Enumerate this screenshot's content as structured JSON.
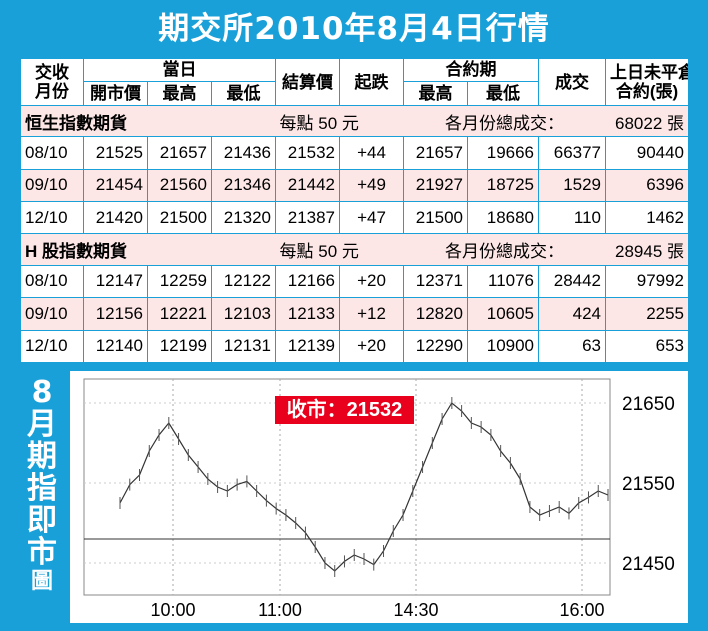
{
  "title": "期交所2010年8月4日行情",
  "table": {
    "headers": {
      "month_line1": "交收",
      "month_line2": "月份",
      "day_group": "當日",
      "open": "開市價",
      "high": "最高",
      "low": "最低",
      "settle": "結算價",
      "change": "起跌",
      "contract_group": "合約期",
      "c_high": "最高",
      "c_low": "最低",
      "volume": "成交",
      "oi_line1": "上日未平倉",
      "oi_line2": "合約(張)"
    },
    "sections": [
      {
        "name": "恒生指數期貨",
        "per_point": "每點 50 元",
        "total_label": "各月份總成交：",
        "total": "68022 張",
        "rows": [
          {
            "month": "08/10",
            "open": "21525",
            "high": "21657",
            "low": "21436",
            "settle": "21532",
            "change": "+44",
            "c_high": "21657",
            "c_low": "19666",
            "volume": "66377",
            "oi": "90440"
          },
          {
            "month": "09/10",
            "open": "21454",
            "high": "21560",
            "low": "21346",
            "settle": "21442",
            "change": "+49",
            "c_high": "21927",
            "c_low": "18725",
            "volume": "1529",
            "oi": "6396"
          },
          {
            "month": "12/10",
            "open": "21420",
            "high": "21500",
            "low": "21320",
            "settle": "21387",
            "change": "+47",
            "c_high": "21500",
            "c_low": "18680",
            "volume": "110",
            "oi": "1462"
          }
        ]
      },
      {
        "name": "H 股指數期貨",
        "per_point": "每點 50 元",
        "total_label": "各月份總成交：",
        "total": "28945 張",
        "rows": [
          {
            "month": "08/10",
            "open": "12147",
            "high": "12259",
            "low": "12122",
            "settle": "12166",
            "change": "+20",
            "c_high": "12371",
            "c_low": "11076",
            "volume": "28442",
            "oi": "97992"
          },
          {
            "month": "09/10",
            "open": "12156",
            "high": "12221",
            "low": "12103",
            "settle": "12133",
            "change": "+12",
            "c_high": "12820",
            "c_low": "10605",
            "volume": "424",
            "oi": "2255"
          },
          {
            "month": "12/10",
            "open": "12140",
            "high": "12199",
            "low": "12131",
            "settle": "12139",
            "change": "+20",
            "c_high": "12290",
            "c_low": "10900",
            "volume": "63",
            "oi": "653"
          }
        ]
      }
    ]
  },
  "sidebar": {
    "chars": [
      "8",
      "月",
      "期",
      "指",
      "即",
      "市",
      "圖"
    ]
  },
  "close_label": "收市：21532",
  "colors": {
    "frame": "#1aa0d8",
    "row_pink": "#fde6e6",
    "close_box": "#e8001c"
  },
  "chart_data": {
    "type": "line",
    "title": "8月期指即市圖",
    "x_ticks": [
      "10:00",
      "11:00",
      "14:30",
      "16:00"
    ],
    "y_ticks": [
      21450,
      21550,
      21650
    ],
    "ylim": [
      21410,
      21680
    ],
    "reference_line": 21480,
    "close": 21532,
    "grid": true,
    "series": [
      {
        "values": [
          21525,
          21548,
          21560,
          21590,
          21610,
          21625,
          21605,
          21585,
          21570,
          21555,
          21545,
          21540,
          21548,
          21552,
          21540,
          21528,
          21518,
          21510,
          21500,
          21488,
          21470,
          21450,
          21440,
          21452,
          21460,
          21455,
          21448,
          21465,
          21490,
          21510,
          21540,
          21570,
          21600,
          21630,
          21650,
          21640,
          21625,
          21620,
          21610,
          21590,
          21575,
          21555,
          21520,
          21510,
          21515,
          21520,
          21512,
          21525,
          21532,
          21540,
          21535
        ]
      }
    ]
  }
}
